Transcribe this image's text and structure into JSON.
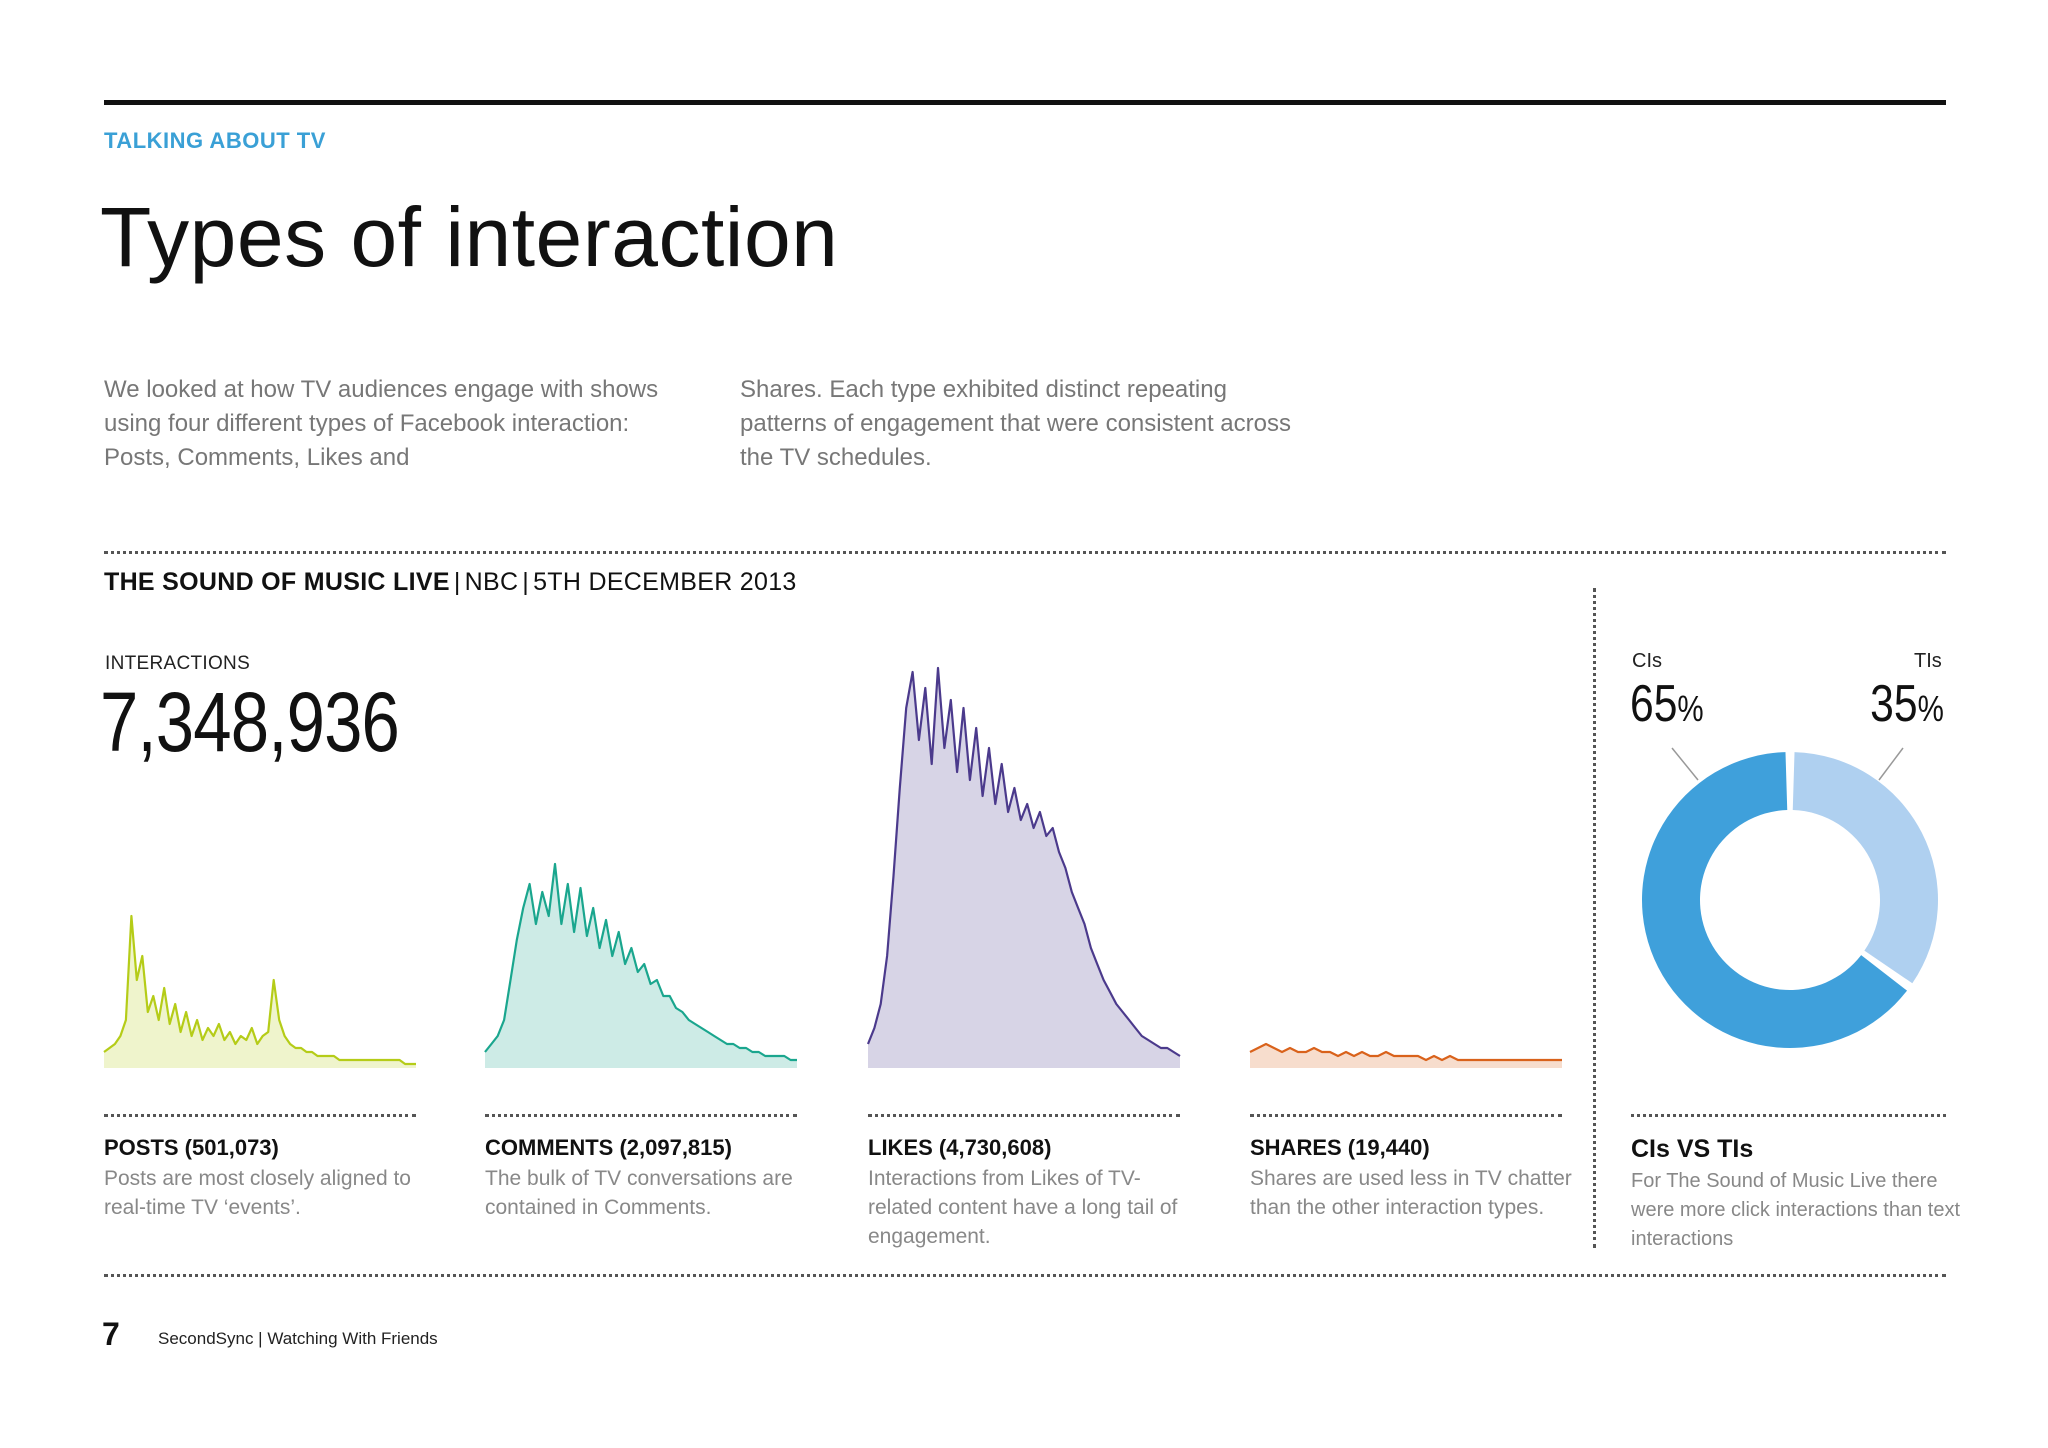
{
  "header": {
    "section_label": "TALKING ABOUT TV",
    "title": "Types of interaction"
  },
  "intro": {
    "col1": "We looked at how TV audiences engage with shows using four different types of Facebook interaction: Posts, Comments, Likes and",
    "col2": "Shares. Each type exhibited distinct repeating patterns of engagement that were consistent across the TV schedules."
  },
  "show": {
    "name": "THE SOUND OF MUSIC LIVE",
    "network": "NBC",
    "date": "5TH DECEMBER 2013"
  },
  "interactions": {
    "label": "INTERACTIONS",
    "total": "7,348,936"
  },
  "panels": [
    {
      "title": "POSTS (501,073)",
      "desc": "Posts are most closely aligned to real-time TV ‘events’."
    },
    {
      "title": "COMMENTS (2,097,815)",
      "desc": "The bulk of TV conversations are contained in Comments."
    },
    {
      "title": "LIKES (4,730,608)",
      "desc": "Interactions from Likes of TV-related content have a long tail of engagement."
    },
    {
      "title": "SHARES (19,440)",
      "desc": "Shares are used less in TV chatter than the other interaction types."
    }
  ],
  "donut": {
    "left_label": "CIs",
    "left_pct": "65",
    "right_label": "TIs",
    "right_pct": "35",
    "pct_suffix": "%",
    "title": "CIs VS TIs",
    "desc": "For The Sound of Music Live there were more click interactions than text interactions"
  },
  "footer": {
    "page_number": "7",
    "text": "SecondSync | Watching With Friends"
  },
  "colors": {
    "accent_blue": "#3aa0d6",
    "posts": "#b5cc18",
    "comments": "#1aa68e",
    "likes": "#4b3a8c",
    "shares": "#d9621b",
    "ci": "#3fa0db",
    "ti": "#afd0f0"
  },
  "chart_data": [
    {
      "type": "area",
      "name": "POSTS (501,073)",
      "y_max_shared": 100,
      "values": [
        4,
        5,
        6,
        8,
        12,
        38,
        22,
        28,
        14,
        18,
        12,
        20,
        11,
        16,
        9,
        14,
        8,
        12,
        7,
        10,
        8,
        11,
        7,
        9,
        6,
        8,
        7,
        10,
        6,
        8,
        9,
        22,
        12,
        8,
        6,
        5,
        5,
        4,
        4,
        3,
        3,
        3,
        3,
        2,
        2,
        2,
        2,
        2,
        2,
        2,
        2,
        2,
        2,
        2,
        2,
        1,
        1,
        1
      ]
    },
    {
      "type": "area",
      "name": "COMMENTS (2,097,815)",
      "y_max_shared": 100,
      "values": [
        4,
        6,
        8,
        12,
        22,
        32,
        40,
        46,
        36,
        44,
        38,
        51,
        36,
        46,
        34,
        45,
        33,
        40,
        30,
        37,
        28,
        34,
        26,
        30,
        24,
        26,
        21,
        22,
        18,
        18,
        15,
        14,
        12,
        11,
        10,
        9,
        8,
        7,
        6,
        6,
        5,
        5,
        4,
        4,
        3,
        3,
        3,
        3,
        2,
        2
      ]
    },
    {
      "type": "area",
      "name": "LIKES (4,730,608)",
      "y_max_shared": 100,
      "values": [
        6,
        10,
        16,
        28,
        48,
        70,
        90,
        99,
        82,
        95,
        76,
        100,
        80,
        92,
        74,
        90,
        72,
        85,
        68,
        80,
        66,
        76,
        64,
        70,
        62,
        66,
        60,
        64,
        58,
        60,
        54,
        50,
        44,
        40,
        36,
        30,
        26,
        22,
        19,
        16,
        14,
        12,
        10,
        8,
        7,
        6,
        5,
        5,
        4,
        3
      ]
    },
    {
      "type": "area",
      "name": "SHARES (19,440)",
      "y_max_shared": 100,
      "values": [
        4,
        5,
        6,
        5,
        4,
        5,
        4,
        4,
        5,
        4,
        4,
        3,
        4,
        3,
        4,
        3,
        3,
        4,
        3,
        3,
        3,
        3,
        2,
        3,
        2,
        3,
        2,
        2,
        2,
        2,
        2,
        2,
        2,
        2,
        2,
        2,
        2,
        2,
        2,
        2
      ]
    },
    {
      "type": "pie",
      "variant": "donut",
      "labels": [
        "CIs",
        "TIs"
      ],
      "values": [
        65,
        35
      ],
      "title": "CIs VS TIs"
    }
  ]
}
